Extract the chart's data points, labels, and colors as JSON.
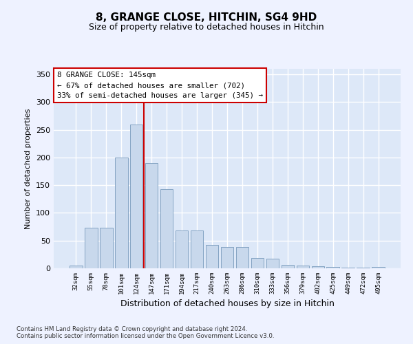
{
  "title1": "8, GRANGE CLOSE, HITCHIN, SG4 9HD",
  "title2": "Size of property relative to detached houses in Hitchin",
  "xlabel": "Distribution of detached houses by size in Hitchin",
  "ylabel": "Number of detached properties",
  "categories": [
    "32sqm",
    "55sqm",
    "78sqm",
    "101sqm",
    "124sqm",
    "147sqm",
    "171sqm",
    "194sqm",
    "217sqm",
    "240sqm",
    "263sqm",
    "286sqm",
    "310sqm",
    "333sqm",
    "356sqm",
    "379sqm",
    "402sqm",
    "425sqm",
    "449sqm",
    "472sqm",
    "495sqm"
  ],
  "values": [
    5,
    73,
    73,
    200,
    260,
    190,
    143,
    68,
    68,
    42,
    39,
    38,
    19,
    18,
    6,
    5,
    4,
    2,
    1,
    1,
    2
  ],
  "bar_color": "#c8d8ec",
  "bar_edge_color": "#7799bb",
  "vline_color": "#cc0000",
  "vline_x_index": 4.5,
  "annotation_lines": [
    "8 GRANGE CLOSE: 145sqm",
    "← 67% of detached houses are smaller (702)",
    "33% of semi-detached houses are larger (345) →"
  ],
  "annotation_box_color": "#ffffff",
  "annotation_box_edge": "#cc0000",
  "ylim": [
    0,
    360
  ],
  "fig_bg_color": "#eef2ff",
  "plot_bg_color": "#dde8f8",
  "grid_color": "#ffffff",
  "footer1": "Contains HM Land Registry data © Crown copyright and database right 2024.",
  "footer2": "Contains public sector information licensed under the Open Government Licence v3.0.",
  "title1_fontsize": 11,
  "title2_fontsize": 9,
  "ylabel_fontsize": 8,
  "xlabel_fontsize": 9
}
